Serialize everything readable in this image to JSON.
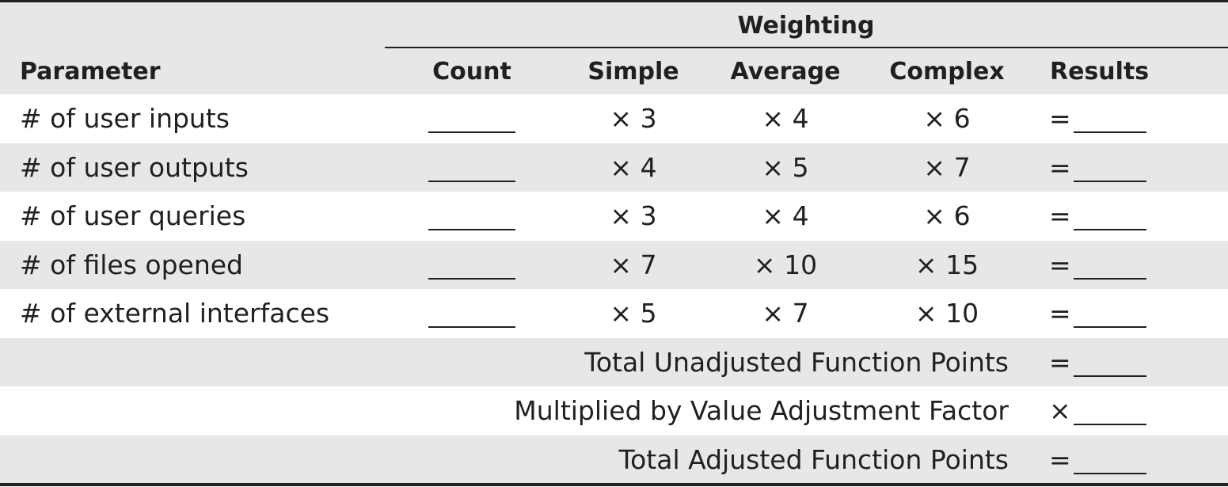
{
  "header": {
    "group_label": "Weighting",
    "parameter": "Parameter",
    "count": "Count",
    "simple": "Simple",
    "average": "Average",
    "complex": "Complex",
    "results": "Results"
  },
  "rows": [
    {
      "parameter": "# of user inputs",
      "simple": "× 3",
      "average": "× 4",
      "complex": "× 6",
      "result_op": "="
    },
    {
      "parameter": "# of user outputs",
      "simple": "× 4",
      "average": "× 5",
      "complex": "× 7",
      "result_op": "="
    },
    {
      "parameter": "# of user queries",
      "simple": "× 3",
      "average": "× 4",
      "complex": "× 6",
      "result_op": "="
    },
    {
      "parameter": "# of files opened",
      "simple": "× 7",
      "average": "× 10",
      "complex": "× 15",
      "result_op": "="
    },
    {
      "parameter": "# of external interfaces",
      "simple": "× 5",
      "average": "× 7",
      "complex": "× 10",
      "result_op": "="
    }
  ],
  "totals": [
    {
      "label": "Total Unadjusted Function Points",
      "op": "="
    },
    {
      "label": "Multiplied by Value Adjustment Factor",
      "op": "×"
    },
    {
      "label": "Total Adjusted Function Points",
      "op": "="
    }
  ],
  "colors": {
    "shade": "#e6e7e8",
    "ink": "#231f20"
  }
}
